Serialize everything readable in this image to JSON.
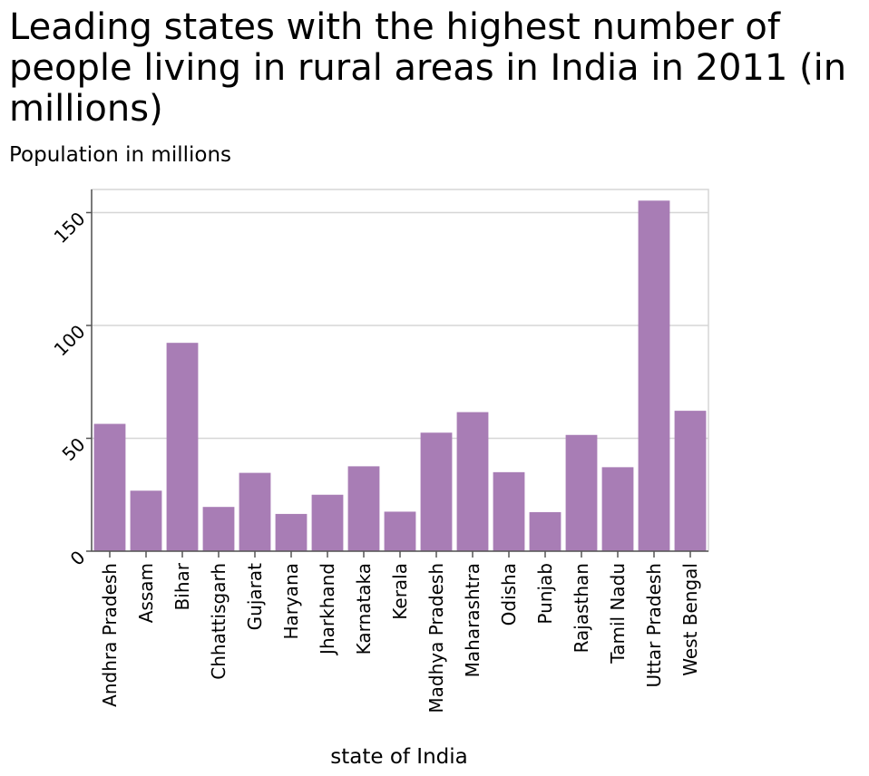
{
  "chart_data": {
    "type": "bar",
    "title": "Leading states with the highest number of people living in rural areas in India in 2011 (in millions)",
    "subtitle": "Population in millions",
    "xlabel": "state of India",
    "ylabel": "",
    "categories": [
      "Andhra Pradesh",
      "Assam",
      "Bihar",
      "Chhattisgarh",
      "Gujarat",
      "Haryana",
      "Jharkhand",
      "Karnataka",
      "Kerala",
      "Madhya Pradesh",
      "Maharashtra",
      "Odisha",
      "Punjab",
      "Rajasthan",
      "Tamil Nadu",
      "Uttar Pradesh",
      "West Bengal"
    ],
    "values": [
      56.4,
      26.8,
      92.3,
      19.6,
      34.7,
      16.5,
      25.0,
      37.6,
      17.5,
      52.5,
      61.6,
      35.0,
      17.3,
      51.5,
      37.2,
      155.3,
      62.2
    ],
    "ylim": [
      0,
      160
    ],
    "yticks": [
      0,
      50,
      100,
      150
    ],
    "grid": true,
    "colors": {
      "bar": "#a87db5",
      "grid": "#d6d6d6",
      "axis": "#555555"
    }
  }
}
